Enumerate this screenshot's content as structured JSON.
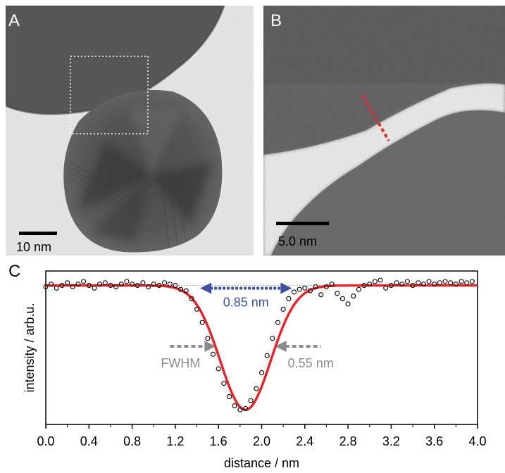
{
  "panels": {
    "a": {
      "label": "A",
      "scale_bar_text": "10 nm"
    },
    "b": {
      "label": "B",
      "scale_bar_text": "5.0 nm"
    },
    "c": {
      "label": "C",
      "annotations": {
        "gap_width": "0.85 nm",
        "fwhm_label": "FWHM",
        "fwhm_value": "0.55 nm"
      }
    }
  },
  "colors": {
    "fit_curve": "#e5262b",
    "width_arrow": "#3a50a0",
    "fwhm_arrow": "#8c8c8c",
    "profile_line": "#e5262b"
  },
  "chart_data": {
    "type": "scatter",
    "xlabel": "distance / nm",
    "ylabel": "intensity / arb.u.",
    "xlim": [
      0.0,
      4.0
    ],
    "ylim": [
      0.0,
      1.0
    ],
    "x_ticks": [
      "0.0",
      "0.4",
      "0.8",
      "1.2",
      "1.6",
      "2.0",
      "2.4",
      "2.8",
      "3.2",
      "3.6",
      "4.0"
    ],
    "y_ticks_shown": false,
    "series": [
      {
        "kind": "measured",
        "marker": "open-circle",
        "x": [
          0.0,
          0.05,
          0.1,
          0.15,
          0.2,
          0.25,
          0.3,
          0.35,
          0.4,
          0.45,
          0.5,
          0.55,
          0.6,
          0.65,
          0.7,
          0.75,
          0.8,
          0.85,
          0.9,
          0.95,
          1.0,
          1.05,
          1.1,
          1.15,
          1.2,
          1.25,
          1.3,
          1.35,
          1.4,
          1.45,
          1.5,
          1.55,
          1.6,
          1.65,
          1.7,
          1.75,
          1.8,
          1.85,
          1.9,
          1.95,
          2.0,
          2.05,
          2.1,
          2.15,
          2.2,
          2.25,
          2.3,
          2.35,
          2.4,
          2.45,
          2.5,
          2.55,
          2.6,
          2.65,
          2.7,
          2.75,
          2.8,
          2.85,
          2.9,
          2.95,
          3.0,
          3.05,
          3.1,
          3.15,
          3.2,
          3.25,
          3.3,
          3.35,
          3.4,
          3.45,
          3.5,
          3.55,
          3.6,
          3.65,
          3.7,
          3.75,
          3.8,
          3.85,
          3.9,
          3.95
        ],
        "y": [
          0.95,
          0.97,
          0.94,
          0.96,
          0.98,
          0.95,
          0.97,
          0.99,
          0.96,
          0.94,
          0.97,
          0.98,
          0.96,
          0.95,
          0.97,
          0.99,
          0.97,
          0.96,
          0.98,
          0.95,
          0.97,
          0.96,
          0.98,
          0.97,
          0.96,
          0.93,
          0.92,
          0.86,
          0.78,
          0.68,
          0.56,
          0.44,
          0.33,
          0.22,
          0.12,
          0.05,
          0.02,
          0.03,
          0.09,
          0.18,
          0.3,
          0.43,
          0.56,
          0.68,
          0.78,
          0.86,
          0.91,
          0.93,
          0.94,
          0.92,
          0.95,
          0.89,
          0.95,
          0.97,
          0.9,
          0.86,
          0.82,
          0.88,
          0.93,
          0.96,
          0.97,
          0.99,
          1.0,
          0.94,
          0.96,
          0.98,
          0.97,
          0.99,
          0.96,
          0.98,
          0.97,
          0.99,
          0.97,
          0.98,
          0.99,
          0.98,
          0.97,
          0.99,
          0.98,
          0.99
        ]
      },
      {
        "kind": "fit",
        "model": "gaussian",
        "center": 1.85,
        "fwhm": 0.55,
        "baseline": 0.96,
        "minimum": 0.02
      }
    ],
    "width_arrow": {
      "from": 1.43,
      "to": 2.28,
      "level": 0.96
    },
    "fwhm_arrows": {
      "left_tip": 1.575,
      "right_tip": 2.125,
      "level": 0.5
    }
  }
}
